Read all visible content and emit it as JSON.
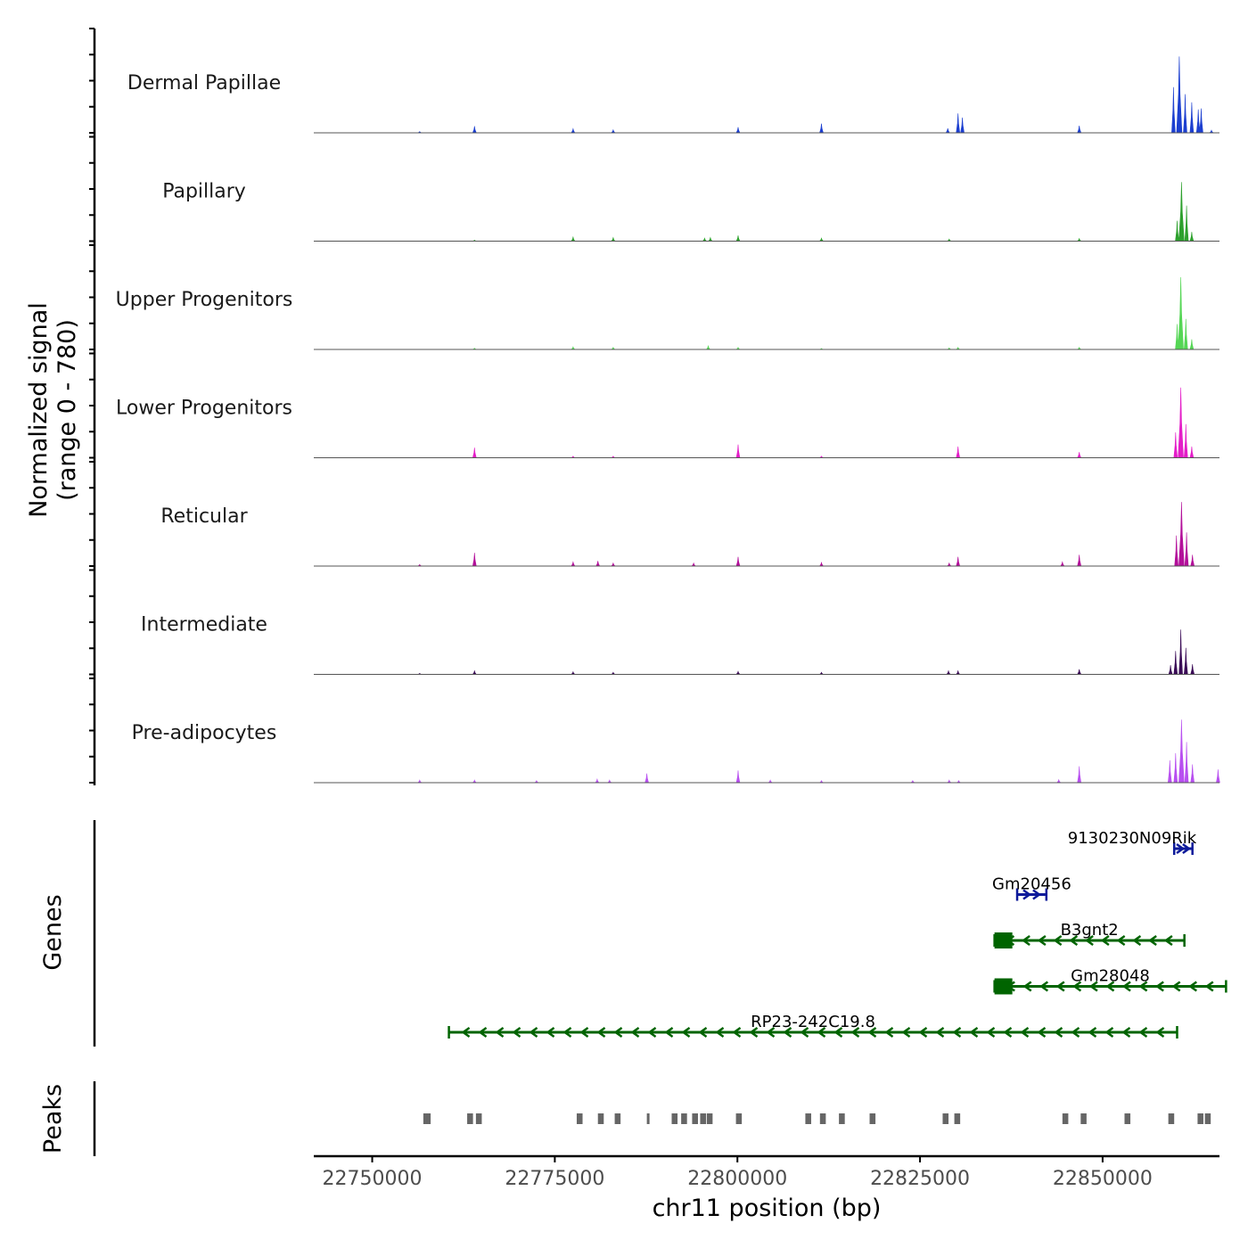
{
  "chart_data": {
    "type": "coverage",
    "chromosome": "chr11",
    "xlabel": "chr11 position (bp)",
    "ylabel_line1": "Normalized signal",
    "ylabel_line2": "(range 0 - 780)",
    "xlim": [
      22742000,
      22866000
    ],
    "xticks": [
      22750000,
      22775000,
      22800000,
      22825000,
      22850000
    ],
    "ymax": 780,
    "tracks": [
      {
        "name": "Dermal Papillae",
        "color": "#1c3fd0",
        "peaks": [
          [
            22756500,
            12
          ],
          [
            22764000,
            65
          ],
          [
            22777500,
            40
          ],
          [
            22783000,
            30
          ],
          [
            22800100,
            55
          ],
          [
            22811500,
            90
          ],
          [
            22828800,
            45
          ],
          [
            22830200,
            190
          ],
          [
            22830800,
            150
          ],
          [
            22846800,
            70
          ],
          [
            22859700,
            450
          ],
          [
            22860500,
            750
          ],
          [
            22861300,
            380
          ],
          [
            22862200,
            300
          ],
          [
            22863100,
            230
          ],
          [
            22863500,
            240
          ],
          [
            22864900,
            25
          ]
        ]
      },
      {
        "name": "Papillary",
        "color": "#2ca02c",
        "peaks": [
          [
            22764000,
            10
          ],
          [
            22777500,
            40
          ],
          [
            22783000,
            35
          ],
          [
            22795500,
            30
          ],
          [
            22796300,
            35
          ],
          [
            22800100,
            55
          ],
          [
            22811500,
            30
          ],
          [
            22829000,
            20
          ],
          [
            22846800,
            25
          ],
          [
            22860200,
            200
          ],
          [
            22860800,
            580
          ],
          [
            22861500,
            350
          ],
          [
            22862200,
            90
          ]
        ]
      },
      {
        "name": "Upper Progenitors",
        "color": "#55d655",
        "peaks": [
          [
            22764000,
            12
          ],
          [
            22777500,
            25
          ],
          [
            22783000,
            20
          ],
          [
            22796000,
            35
          ],
          [
            22800100,
            20
          ],
          [
            22811500,
            10
          ],
          [
            22829000,
            15
          ],
          [
            22830200,
            20
          ],
          [
            22846800,
            20
          ],
          [
            22860200,
            250
          ],
          [
            22860700,
            710
          ],
          [
            22861400,
            300
          ],
          [
            22862200,
            100
          ]
        ]
      },
      {
        "name": "Lower Progenitors",
        "color": "#e41ec8",
        "peaks": [
          [
            22764000,
            100
          ],
          [
            22777500,
            15
          ],
          [
            22783000,
            15
          ],
          [
            22800100,
            130
          ],
          [
            22811500,
            15
          ],
          [
            22830200,
            110
          ],
          [
            22846800,
            55
          ],
          [
            22860000,
            250
          ],
          [
            22860700,
            690
          ],
          [
            22861400,
            330
          ],
          [
            22862200,
            110
          ]
        ]
      },
      {
        "name": "Reticular",
        "color": "#b30f9a",
        "peaks": [
          [
            22756500,
            15
          ],
          [
            22764000,
            130
          ],
          [
            22777500,
            40
          ],
          [
            22780900,
            50
          ],
          [
            22783000,
            30
          ],
          [
            22794000,
            30
          ],
          [
            22800100,
            90
          ],
          [
            22811500,
            35
          ],
          [
            22829000,
            30
          ],
          [
            22830200,
            90
          ],
          [
            22844500,
            40
          ],
          [
            22846800,
            110
          ],
          [
            22860100,
            300
          ],
          [
            22860800,
            630
          ],
          [
            22861500,
            330
          ],
          [
            22862300,
            110
          ]
        ]
      },
      {
        "name": "Intermediate",
        "color": "#3a0b56",
        "peaks": [
          [
            22756500,
            10
          ],
          [
            22764000,
            35
          ],
          [
            22777500,
            25
          ],
          [
            22783000,
            20
          ],
          [
            22800100,
            30
          ],
          [
            22811500,
            20
          ],
          [
            22828900,
            35
          ],
          [
            22830200,
            35
          ],
          [
            22846800,
            50
          ],
          [
            22859300,
            90
          ],
          [
            22860000,
            230
          ],
          [
            22860700,
            440
          ],
          [
            22861400,
            260
          ],
          [
            22862300,
            100
          ]
        ]
      },
      {
        "name": "Pre-adipocytes",
        "color": "#b84ff0",
        "peaks": [
          [
            22756500,
            25
          ],
          [
            22764000,
            25
          ],
          [
            22772500,
            20
          ],
          [
            22780800,
            35
          ],
          [
            22782500,
            25
          ],
          [
            22787600,
            90
          ],
          [
            22800100,
            120
          ],
          [
            22804500,
            25
          ],
          [
            22811500,
            20
          ],
          [
            22824000,
            20
          ],
          [
            22829000,
            25
          ],
          [
            22830300,
            20
          ],
          [
            22844000,
            30
          ],
          [
            22846800,
            160
          ],
          [
            22859200,
            220
          ],
          [
            22860000,
            290
          ],
          [
            22860800,
            620
          ],
          [
            22861500,
            400
          ],
          [
            22862300,
            180
          ],
          [
            22865800,
            130
          ]
        ]
      }
    ],
    "genes": [
      {
        "name": "9130230N09Rik",
        "start": 22859800,
        "end": 22862300,
        "strand": "+",
        "color": "#0d1a9a",
        "row": 1
      },
      {
        "name": "Gm20456",
        "start": 22838300,
        "end": 22842300,
        "strand": "+",
        "color": "#0d1a9a",
        "row": 2
      },
      {
        "name": "B3gnt2",
        "start": 22835200,
        "end": 22861200,
        "strand": "-",
        "color": "#006400",
        "row": 3
      },
      {
        "name": "Gm28048",
        "start": 22835200,
        "end": 22866900,
        "strand": "-",
        "color": "#006400",
        "row": 4
      },
      {
        "name": "RP23-242C19.8",
        "start": 22760500,
        "end": 22860200,
        "strand": "-",
        "color": "#006400",
        "row": 5
      }
    ],
    "peaks_track": [
      [
        22757000,
        22758000
      ],
      [
        22763000,
        22763800
      ],
      [
        22764200,
        22765000
      ],
      [
        22778000,
        22778800
      ],
      [
        22780900,
        22781700
      ],
      [
        22783200,
        22784000
      ],
      [
        22787600,
        22787900
      ],
      [
        22791000,
        22791800
      ],
      [
        22792300,
        22793100
      ],
      [
        22793800,
        22794600
      ],
      [
        22794900,
        22795700
      ],
      [
        22795800,
        22796600
      ],
      [
        22799800,
        22800600
      ],
      [
        22809300,
        22810100
      ],
      [
        22811300,
        22812100
      ],
      [
        22813900,
        22814700
      ],
      [
        22818100,
        22818900
      ],
      [
        22828100,
        22828900
      ],
      [
        22829700,
        22830500
      ],
      [
        22844500,
        22845300
      ],
      [
        22847000,
        22847800
      ],
      [
        22853000,
        22853800
      ],
      [
        22859000,
        22859800
      ],
      [
        22863000,
        22863800
      ],
      [
        22864000,
        22864800
      ]
    ],
    "panels": {
      "genes": "Genes",
      "peaks": "Peaks"
    }
  }
}
